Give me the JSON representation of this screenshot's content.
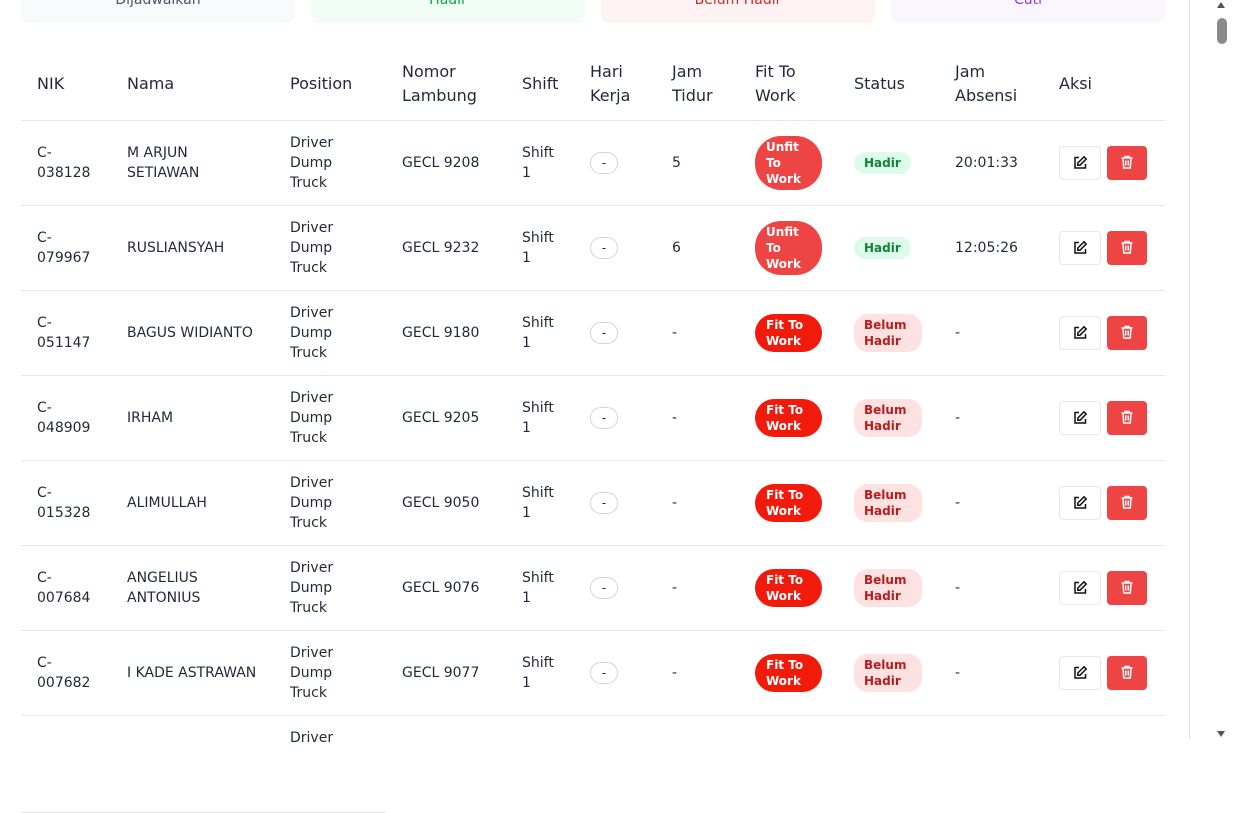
{
  "cards": [
    "Dijadwalkan",
    "Hadir",
    "Belum Hadir",
    "Cuti"
  ],
  "table": {
    "headers": [
      "NIK",
      "Nama",
      "Position",
      "Nomor Lambung",
      "Shift",
      "Hari Kerja",
      "Jam Tidur",
      "Fit To Work",
      "Status",
      "Jam Absensi",
      "Aksi"
    ],
    "rows": [
      [
        "C-038128",
        "M ARJUN SETIAWAN",
        "Driver Dump Truck",
        "GECL 9208",
        "Shift 1",
        "-",
        "5",
        "Unfit To Work",
        "Hadir",
        "20:01:33"
      ],
      [
        "C-079967",
        "RUSLIANSYAH",
        "Driver Dump Truck",
        "GECL 9232",
        "Shift 1",
        "-",
        "6",
        "Unfit To Work",
        "Hadir",
        "12:05:26"
      ],
      [
        "C-051147",
        "BAGUS WIDIANTO",
        "Driver Dump Truck",
        "GECL 9180",
        "Shift 1",
        "-",
        "-",
        "Fit To Work",
        "Belum Hadir",
        "-"
      ],
      [
        "C-048909",
        "IRHAM",
        "Driver Dump Truck",
        "GECL 9205",
        "Shift 1",
        "-",
        "-",
        "Fit To Work",
        "Belum Hadir",
        "-"
      ],
      [
        "C-015328",
        "ALIMULLAH",
        "Driver Dump Truck",
        "GECL 9050",
        "Shift 1",
        "-",
        "-",
        "Fit To Work",
        "Belum Hadir",
        "-"
      ],
      [
        "C-007684",
        "ANGELIUS ANTONIUS",
        "Driver Dump Truck",
        "GECL 9076",
        "Shift 1",
        "-",
        "-",
        "Fit To Work",
        "Belum Hadir",
        "-"
      ],
      [
        "C-007682",
        "I KADE ASTRAWAN",
        "Driver Dump Truck",
        "GECL 9077",
        "Shift 1",
        "-",
        "-",
        "Fit To Work",
        "Belum Hadir",
        "-"
      ]
    ],
    "partial_row_position": "Driver"
  }
}
